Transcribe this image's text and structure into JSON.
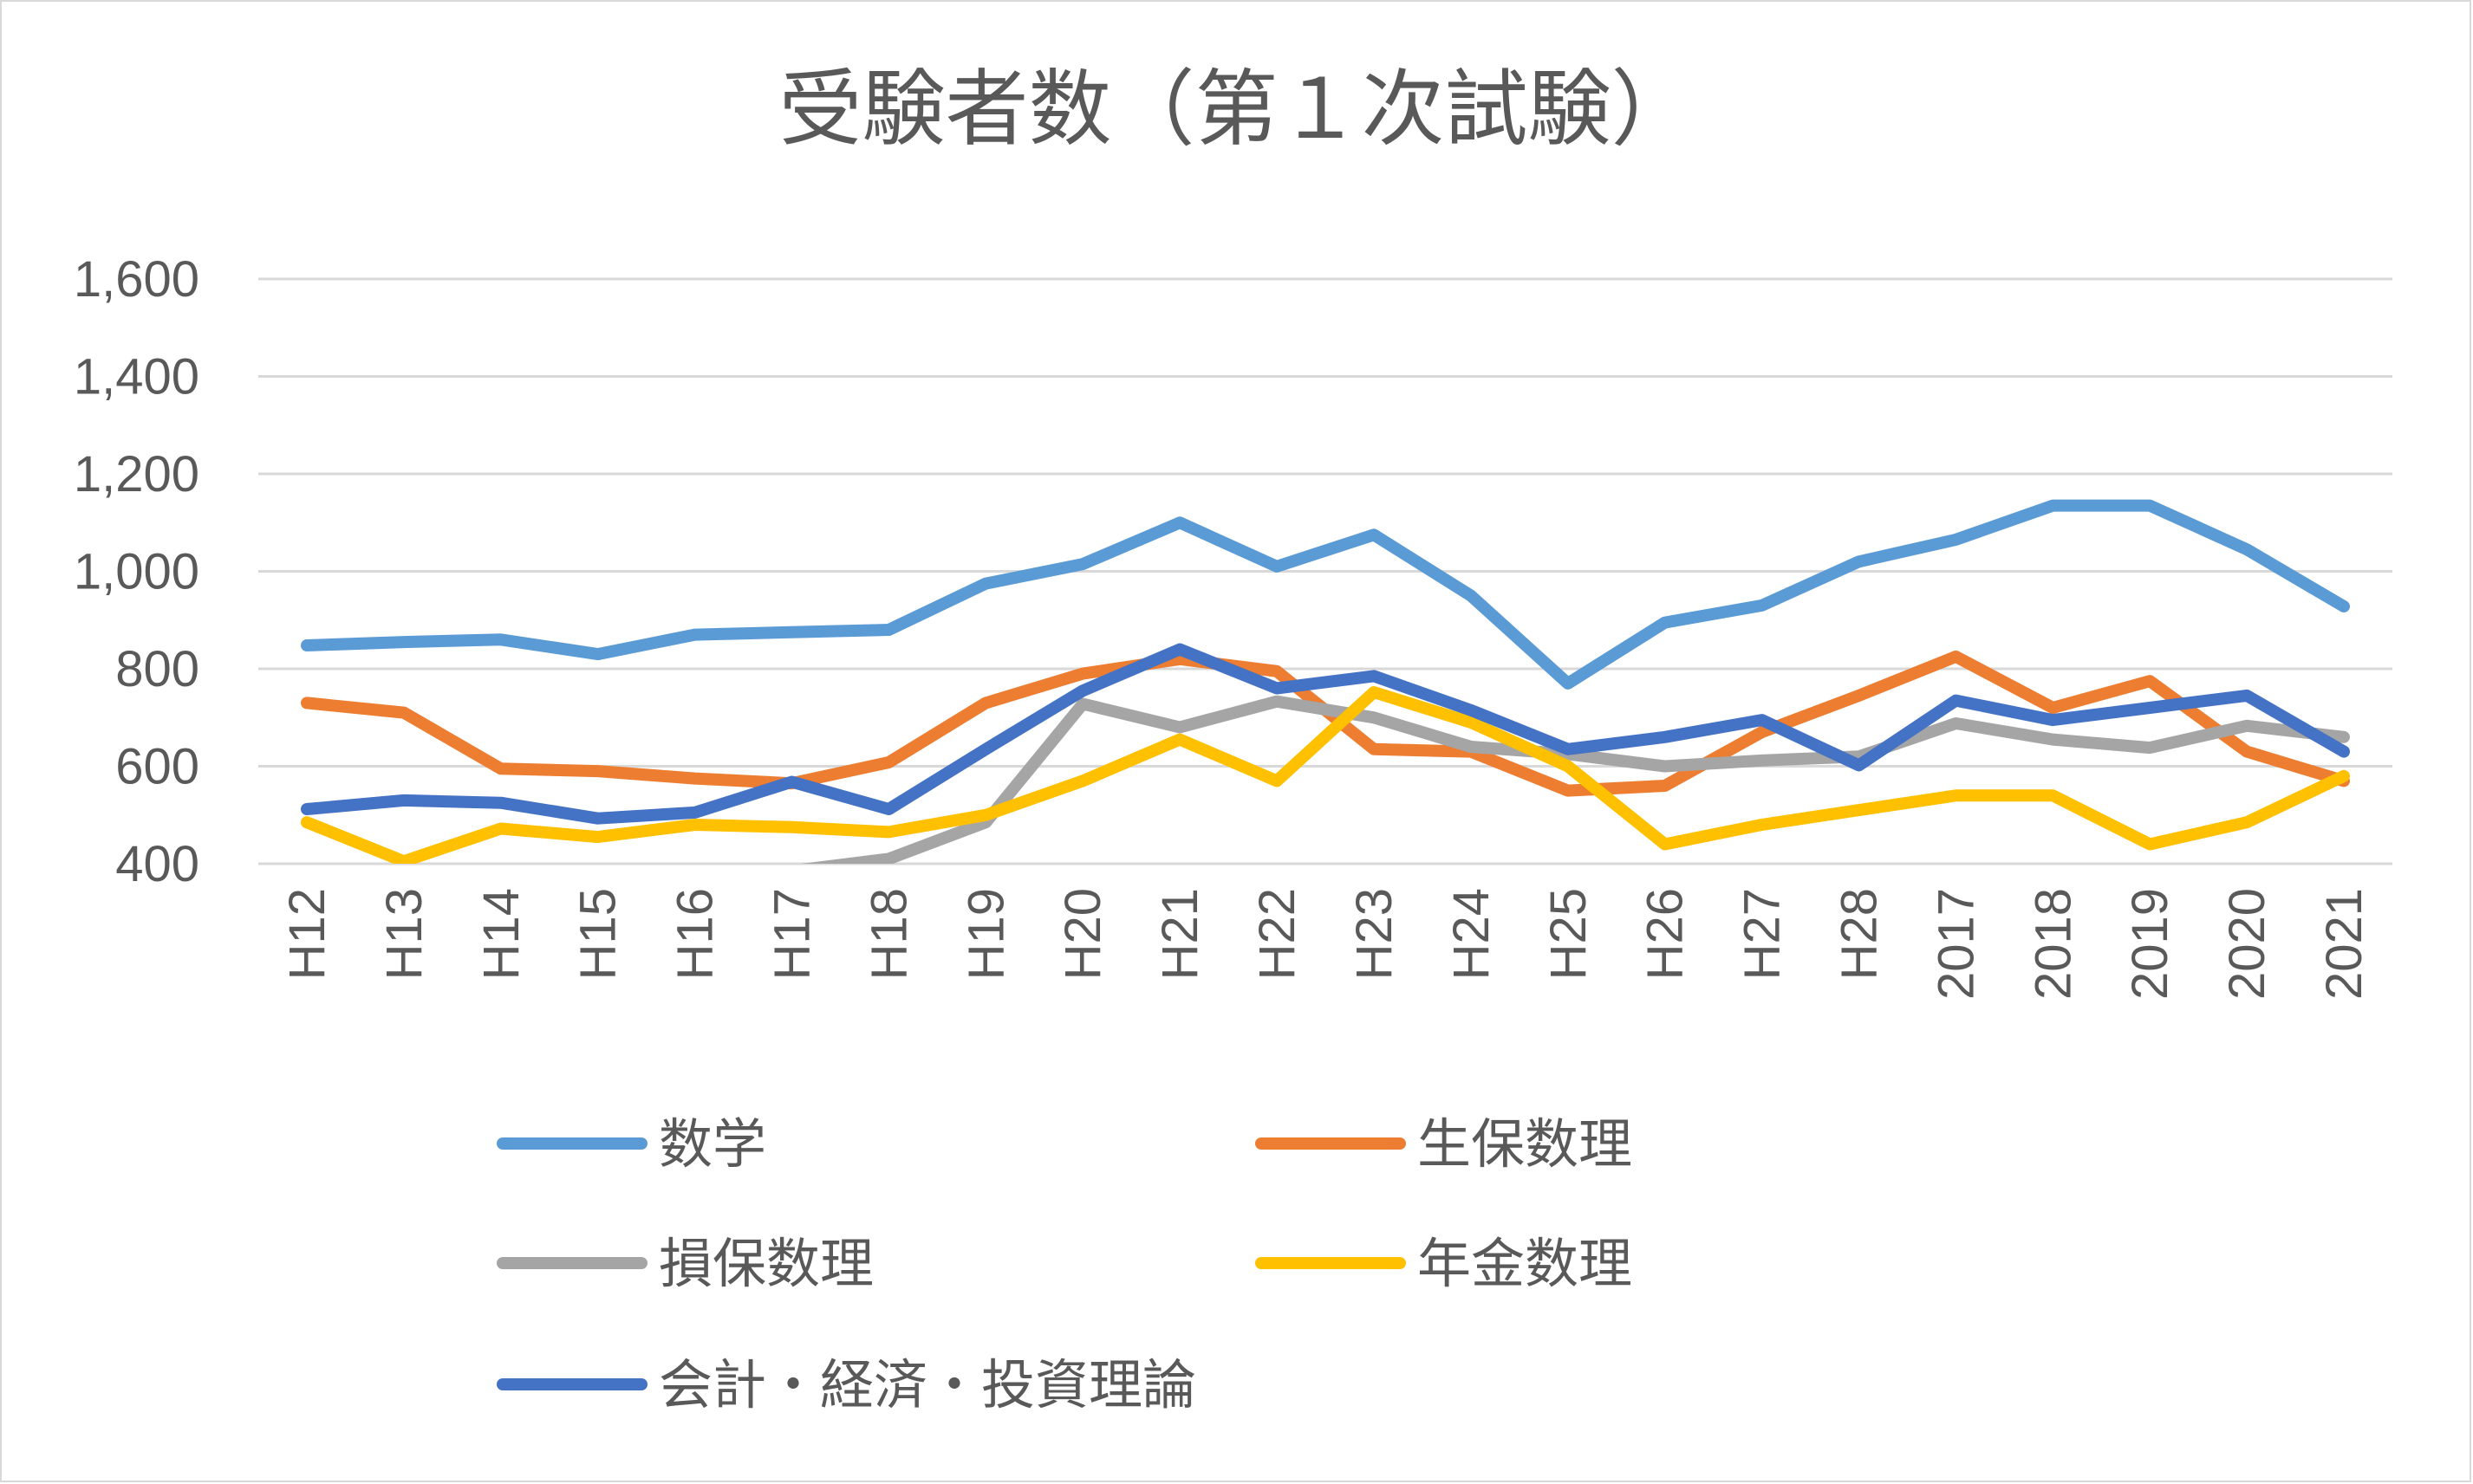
{
  "chart_data": {
    "type": "line",
    "title": "受験者数（第１次試験）",
    "xlabel": "",
    "ylabel": "",
    "ylim": [
      400,
      1600
    ],
    "yticks": [
      400,
      600,
      800,
      1000,
      1200,
      1400,
      1600
    ],
    "ytick_labels": [
      "400",
      "600",
      "800",
      "1,000",
      "1,200",
      "1,400",
      "1,600"
    ],
    "grid": true,
    "legend_position": "bottom",
    "categories": [
      "H12",
      "H13",
      "H14",
      "H15",
      "H16",
      "H17",
      "H18",
      "H19",
      "H20",
      "H21",
      "H22",
      "H23",
      "H24",
      "H25",
      "H26",
      "H27",
      "H28",
      "2017",
      "2018",
      "2019",
      "2020",
      "2021"
    ],
    "series": [
      {
        "name": "数学",
        "color": "#5B9BD5",
        "values": [
          848,
          855,
          860,
          830,
          870,
          875,
          880,
          975,
          1015,
          1100,
          1010,
          1075,
          950,
          770,
          895,
          930,
          1020,
          1065,
          1135,
          1135,
          1045,
          928
        ]
      },
      {
        "name": "生保数理",
        "color": "#ED7D31",
        "values": [
          730,
          710,
          595,
          590,
          575,
          565,
          608,
          730,
          790,
          820,
          795,
          635,
          630,
          550,
          560,
          670,
          745,
          825,
          720,
          775,
          630,
          570
        ]
      },
      {
        "name": "損保数理",
        "color": "#A5A5A5",
        "values": [
          null,
          null,
          null,
          null,
          385,
          385,
          410,
          485,
          728,
          680,
          733,
          700,
          640,
          625,
          600,
          612,
          620,
          688,
          655,
          638,
          683,
          660
        ]
      },
      {
        "name": "年金数理",
        "color": "#FFC000",
        "values": [
          485,
          405,
          472,
          455,
          480,
          475,
          465,
          500,
          570,
          655,
          570,
          752,
          690,
          600,
          440,
          480,
          510,
          540,
          540,
          440,
          485,
          580
        ]
      },
      {
        "name": "会計・経済・投資理論",
        "color": "#4472C4",
        "values": [
          512,
          530,
          525,
          493,
          505,
          568,
          512,
          635,
          755,
          840,
          760,
          785,
          715,
          635,
          660,
          695,
          602,
          735,
          695,
          720,
          745,
          630
        ]
      }
    ]
  }
}
